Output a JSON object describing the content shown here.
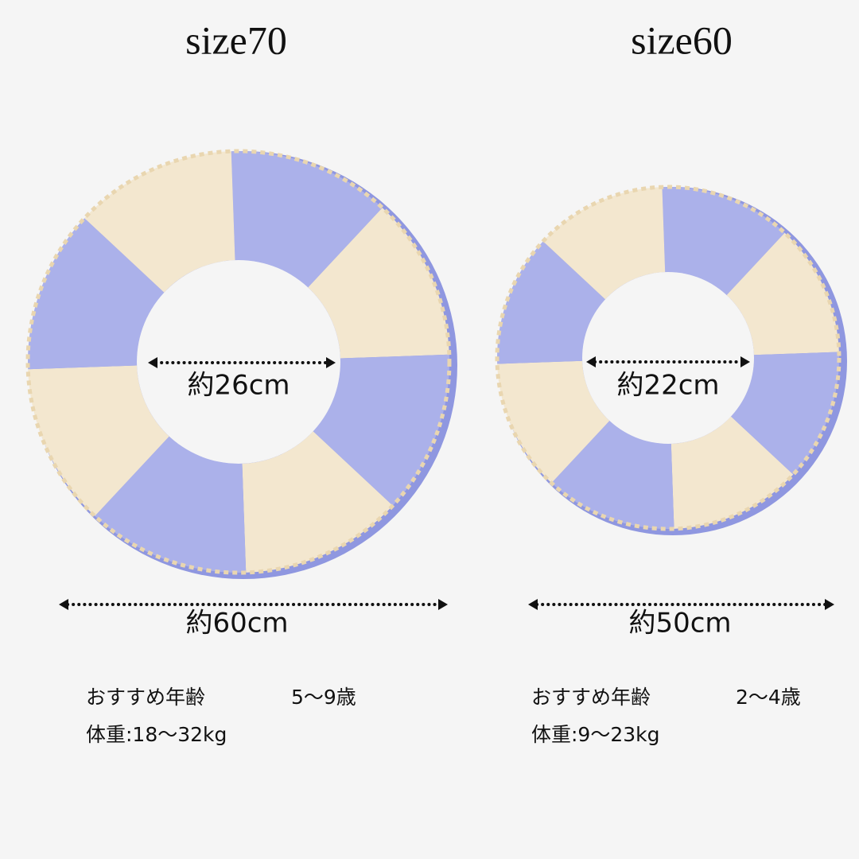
{
  "products": [
    {
      "title": "size70",
      "inner": "約26cm",
      "outer": "約60cm",
      "age_label": "おすすめ年齢",
      "age": "5〜9歳",
      "weight": "体重:18〜32kg"
    },
    {
      "title": "size60",
      "inner": "約22cm",
      "outer": "約50cm",
      "age_label": "おすすめ年齢",
      "age": "2〜4歳",
      "weight": "体重:9〜23kg"
    }
  ]
}
